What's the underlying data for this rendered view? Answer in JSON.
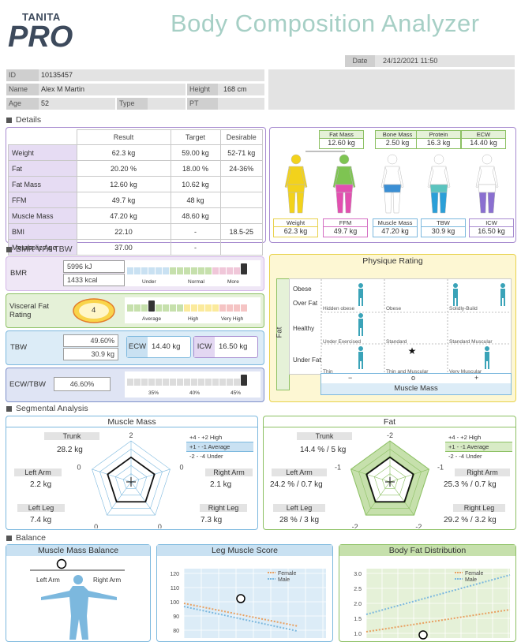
{
  "header": {
    "logo_top": "TANITA",
    "logo_bottom": "PRO",
    "title": "Body Composition Analyzer"
  },
  "date": {
    "label": "Date",
    "value": "24/12/2021 11:50"
  },
  "patient": {
    "id_label": "ID",
    "id": "10135457",
    "name_label": "Name",
    "name": "Alex M Martin",
    "height_label": "Height",
    "height": "168 cm",
    "age_label": "Age",
    "age": "52",
    "type_label": "Type",
    "type": "",
    "pt_label": "PT",
    "pt": ""
  },
  "sections": {
    "details": "Details",
    "bmr": "BMR VFA TBW",
    "segmental": "Segmental Analysis",
    "balance": "Balance"
  },
  "details": {
    "headers": [
      "Result",
      "Target",
      "Desirable"
    ],
    "rows": [
      {
        "name": "Weight",
        "result": "62.3 kg",
        "target": "59.00 kg",
        "desirable": "52-71 kg"
      },
      {
        "name": "Fat",
        "result": "20.20 %",
        "target": "18.00 %",
        "desirable": "24-36%"
      },
      {
        "name": "Fat Mass",
        "result": "12.60 kg",
        "target": "10.62 kg",
        "desirable": ""
      },
      {
        "name": "FFM",
        "result": "49.7 kg",
        "target": "48 kg",
        "desirable": ""
      },
      {
        "name": "Muscle Mass",
        "result": "47.20 kg",
        "target": "48.60 kg",
        "desirable": ""
      },
      {
        "name": "BMI",
        "result": "22.10",
        "target": "-",
        "desirable": "18.5-25"
      },
      {
        "name": "Metabolic Age",
        "result": "37.00",
        "target": "-",
        "desirable": ""
      }
    ]
  },
  "composition": {
    "top": [
      {
        "label": "Fat Mass",
        "value": "12.60 kg"
      },
      {
        "label": "Bone Mass",
        "value": "2.50 kg"
      },
      {
        "label": "Protein",
        "value": "16.3 kg"
      },
      {
        "label": "ECW",
        "value": "14.40 kg"
      }
    ],
    "bottom": [
      {
        "label": "Weight",
        "value": "62.3 kg"
      },
      {
        "label": "FFM",
        "value": "49.7 kg"
      },
      {
        "label": "Muscle Mass",
        "value": "47.20 kg"
      },
      {
        "label": "TBW",
        "value": "30.9 kg"
      },
      {
        "label": "ICW",
        "value": "16.50 kg"
      }
    ]
  },
  "bmr": {
    "label": "BMR",
    "kj": "5996 kJ",
    "kcal": "1433 kcal",
    "scale": [
      "Under",
      "Normal",
      "More"
    ]
  },
  "vfr": {
    "label1": "Visceral Fat",
    "label2": "Rating",
    "value": "4",
    "scale": [
      "Average",
      "High",
      "Very High"
    ]
  },
  "tbw": {
    "label": "TBW",
    "percent": "49.60%",
    "kg": "30.9 kg",
    "ecw_label": "ECW",
    "ecw": "14.40 kg",
    "icw_label": "ICW",
    "icw": "16.50 kg"
  },
  "ecwtbw": {
    "label": "ECW/TBW",
    "value": "46.60%",
    "ticks": [
      "35%",
      "40%",
      "45%"
    ]
  },
  "physique": {
    "title": "Physique Rating",
    "fat_axis": "Fat",
    "muscle_axis": "Muscle Mass",
    "rows": [
      "Obese",
      "Over Fat",
      "Healthy",
      "Under Fat"
    ],
    "cells": [
      "Hidden obese",
      "Obese",
      "Solidly-Build",
      "Under Exercised",
      "Standard",
      "Standard Muscular",
      "Thin",
      "Thin and Muscular",
      "Very Muscular"
    ],
    "axis": [
      "−",
      "o",
      "+"
    ]
  },
  "muscle_radar": {
    "title": "Muscle Mass",
    "trunk_label": "Trunk",
    "trunk": "28.2 kg",
    "la_label": "Left Arm",
    "la": "2.2 kg",
    "ra_label": "Right Arm",
    "ra": "2.1 kg",
    "ll_label": "Left Leg",
    "ll": "7.4 kg",
    "rl_label": "Right Leg",
    "rl": "7.3 kg",
    "axis_top": "2",
    "axis_l": "0",
    "axis_r": "0",
    "axis_bl": "0",
    "axis_br": "0",
    "legend": [
      "+4 - +2  High",
      "+1 - -1   Average",
      "-2 - -4  Under"
    ]
  },
  "fat_radar": {
    "title": "Fat",
    "trunk_label": "Trunk",
    "trunk": "14.4 % / 5 kg",
    "la_label": "Left Arm",
    "la": "24.2 % / 0.7 kg",
    "ra_label": "Right Arm",
    "ra": "25.3 % / 0.7 kg",
    "ll_label": "Left Leg",
    "ll": "28 % / 3 kg",
    "rl_label": "Right Leg",
    "rl": "29.2 % / 3.2 kg",
    "axis_top": "-2",
    "axis_l": "-1",
    "axis_r": "-1",
    "axis_bl": "-2",
    "axis_br": "-2",
    "legend": [
      "+4 - +2  High",
      "+1 - -1   Average",
      "-2 - -4  Under"
    ]
  },
  "balance": {
    "mmb_title": "Muscle Mass Balance",
    "left_arm": "Left Arm",
    "right_arm": "Right Arm",
    "lms_title": "Leg Muscle Score",
    "bfd_title": "Body Fat Distribution",
    "female": "Female",
    "male": "Male",
    "lms_ticks": [
      "120",
      "110",
      "100",
      "90",
      "80"
    ],
    "bfd_ticks": [
      "3.0",
      "2.5",
      "2.0",
      "1.5",
      "1.0"
    ]
  },
  "colors": {
    "accent_green": "#8cc063",
    "accent_purple": "#a78bd0",
    "accent_blue": "#7cb8de",
    "accent_yellow": "#e8d24c",
    "title": "#a6cfc5"
  }
}
